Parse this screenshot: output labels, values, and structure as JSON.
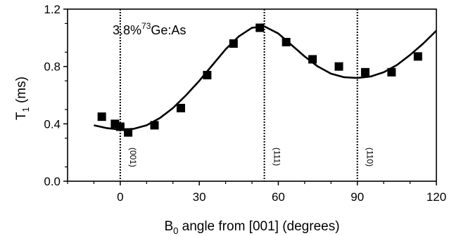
{
  "chart_data": {
    "type": "scatter",
    "xlabel_main": "B",
    "xlabel_sub": "0",
    "xlabel_rest": " angle from [001] (degrees)",
    "ylabel_main": "T",
    "ylabel_sub": "1",
    "ylabel_rest": " (ms)",
    "xlim": [
      -20,
      120
    ],
    "ylim": [
      0,
      1.2
    ],
    "x_ticks": [
      0,
      30,
      60,
      90,
      120
    ],
    "y_ticks": [
      0.0,
      0.4,
      0.8,
      1.2
    ],
    "x_tick_labels": [
      "0",
      "30",
      "60",
      "90",
      "120"
    ],
    "y_tick_labels": [
      "0.0",
      "0.4",
      "0.8",
      "1.2"
    ],
    "annotation": {
      "prefix": "3.8%",
      "superscript": "73",
      "suffix": "Ge:As"
    },
    "vertical_lines": [
      {
        "x": 0,
        "label": "(001)"
      },
      {
        "x": 54.7,
        "label": "(111)"
      },
      {
        "x": 90,
        "label": "(110)"
      }
    ],
    "series": [
      {
        "kind": "points",
        "x": [
          -7,
          -2,
          0,
          3,
          13,
          23,
          33,
          43,
          53,
          63,
          73,
          83,
          93,
          103,
          113
        ],
        "y": [
          0.45,
          0.4,
          0.38,
          0.34,
          0.39,
          0.51,
          0.74,
          0.96,
          1.07,
          0.97,
          0.85,
          0.8,
          0.76,
          0.76,
          0.87
        ]
      },
      {
        "kind": "fit-curve",
        "x": [
          -10,
          -5,
          0,
          5,
          10,
          15,
          20,
          25,
          30,
          35,
          40,
          45,
          50,
          54.7,
          60,
          65,
          70,
          75,
          80,
          85,
          90,
          95,
          100,
          105,
          110,
          115,
          120
        ],
        "y": [
          0.39,
          0.37,
          0.36,
          0.365,
          0.39,
          0.44,
          0.51,
          0.6,
          0.7,
          0.81,
          0.92,
          1.01,
          1.07,
          1.08,
          1.03,
          0.95,
          0.87,
          0.8,
          0.75,
          0.725,
          0.72,
          0.73,
          0.76,
          0.81,
          0.88,
          0.96,
          1.05
        ]
      }
    ]
  }
}
